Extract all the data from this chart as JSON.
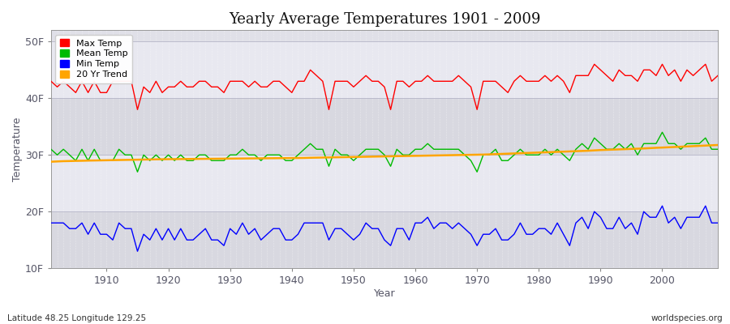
{
  "title": "Yearly Average Temperatures 1901 - 2009",
  "xlabel": "Year",
  "ylabel": "Temperature",
  "xlim": [
    1901,
    2009
  ],
  "ylim": [
    10,
    52
  ],
  "yticks": [
    10,
    20,
    30,
    40,
    50
  ],
  "ytick_labels": [
    "10F",
    "20F",
    "30F",
    "40F",
    "50F"
  ],
  "xticks": [
    1910,
    1920,
    1930,
    1940,
    1950,
    1960,
    1970,
    1980,
    1990,
    2000
  ],
  "bg_color": "#e0e0e8",
  "fig_color": "#ffffff",
  "legend_labels": [
    "Max Temp",
    "Mean Temp",
    "Min Temp",
    "20 Yr Trend"
  ],
  "legend_colors": [
    "#ff0000",
    "#00bb00",
    "#0000ff",
    "#ffa500"
  ],
  "footer_left": "Latitude 48.25 Longitude 129.25",
  "footer_right": "worldspecies.org",
  "years": [
    1901,
    1902,
    1903,
    1904,
    1905,
    1906,
    1907,
    1908,
    1909,
    1910,
    1911,
    1912,
    1913,
    1914,
    1915,
    1916,
    1917,
    1918,
    1919,
    1920,
    1921,
    1922,
    1923,
    1924,
    1925,
    1926,
    1927,
    1928,
    1929,
    1930,
    1931,
    1932,
    1933,
    1934,
    1935,
    1936,
    1937,
    1938,
    1939,
    1940,
    1941,
    1942,
    1943,
    1944,
    1945,
    1946,
    1947,
    1948,
    1949,
    1950,
    1951,
    1952,
    1953,
    1954,
    1955,
    1956,
    1957,
    1958,
    1959,
    1960,
    1961,
    1962,
    1963,
    1964,
    1965,
    1966,
    1967,
    1968,
    1969,
    1970,
    1971,
    1972,
    1973,
    1974,
    1975,
    1976,
    1977,
    1978,
    1979,
    1980,
    1981,
    1982,
    1983,
    1984,
    1985,
    1986,
    1987,
    1988,
    1989,
    1990,
    1991,
    1992,
    1993,
    1994,
    1995,
    1996,
    1997,
    1998,
    1999,
    2000,
    2001,
    2002,
    2003,
    2004,
    2005,
    2006,
    2007,
    2008,
    2009
  ],
  "max_temp": [
    43,
    42,
    43,
    42,
    41,
    43,
    41,
    43,
    41,
    41,
    43,
    43,
    43,
    43,
    38,
    42,
    41,
    43,
    41,
    42,
    42,
    43,
    42,
    42,
    43,
    43,
    42,
    42,
    41,
    43,
    43,
    43,
    42,
    43,
    42,
    42,
    43,
    43,
    42,
    41,
    43,
    43,
    45,
    44,
    43,
    38,
    43,
    43,
    43,
    42,
    43,
    44,
    43,
    43,
    42,
    38,
    43,
    43,
    42,
    43,
    43,
    44,
    43,
    43,
    43,
    43,
    44,
    43,
    42,
    38,
    43,
    43,
    43,
    42,
    41,
    43,
    44,
    43,
    43,
    43,
    44,
    43,
    44,
    43,
    41,
    44,
    44,
    44,
    46,
    45,
    44,
    43,
    45,
    44,
    44,
    43,
    45,
    45,
    44,
    46,
    44,
    45,
    43,
    45,
    44,
    45,
    46,
    43,
    44
  ],
  "mean_temp": [
    31,
    30,
    31,
    30,
    29,
    31,
    29,
    31,
    29,
    29,
    29,
    31,
    30,
    30,
    27,
    30,
    29,
    30,
    29,
    30,
    29,
    30,
    29,
    29,
    30,
    30,
    29,
    29,
    29,
    30,
    30,
    31,
    30,
    30,
    29,
    30,
    30,
    30,
    29,
    29,
    30,
    31,
    32,
    31,
    31,
    28,
    31,
    30,
    30,
    29,
    30,
    31,
    31,
    31,
    30,
    28,
    31,
    30,
    30,
    31,
    31,
    32,
    31,
    31,
    31,
    31,
    31,
    30,
    29,
    27,
    30,
    30,
    31,
    29,
    29,
    30,
    31,
    30,
    30,
    30,
    31,
    30,
    31,
    30,
    29,
    31,
    32,
    31,
    33,
    32,
    31,
    31,
    32,
    31,
    32,
    30,
    32,
    32,
    32,
    34,
    32,
    32,
    31,
    32,
    32,
    32,
    33,
    31,
    31
  ],
  "min_temp": [
    18,
    18,
    18,
    17,
    17,
    18,
    16,
    18,
    16,
    16,
    15,
    18,
    17,
    17,
    13,
    16,
    15,
    17,
    15,
    17,
    15,
    17,
    15,
    15,
    16,
    17,
    15,
    15,
    14,
    17,
    16,
    18,
    16,
    17,
    15,
    16,
    17,
    17,
    15,
    15,
    16,
    18,
    18,
    18,
    18,
    15,
    17,
    17,
    16,
    15,
    16,
    18,
    17,
    17,
    15,
    14,
    17,
    17,
    15,
    18,
    18,
    19,
    17,
    18,
    18,
    17,
    18,
    17,
    16,
    14,
    16,
    16,
    17,
    15,
    15,
    16,
    18,
    16,
    16,
    17,
    17,
    16,
    18,
    16,
    14,
    18,
    19,
    17,
    20,
    19,
    17,
    17,
    19,
    17,
    18,
    16,
    20,
    19,
    19,
    21,
    18,
    19,
    17,
    19,
    19,
    19,
    21,
    18,
    18
  ],
  "trend": [
    28.8,
    28.85,
    28.9,
    28.92,
    28.95,
    28.97,
    29.0,
    29.02,
    29.04,
    29.06,
    29.08,
    29.1,
    29.12,
    29.14,
    29.16,
    29.18,
    29.2,
    29.22,
    29.24,
    29.25,
    29.26,
    29.27,
    29.28,
    29.29,
    29.3,
    29.31,
    29.32,
    29.33,
    29.34,
    29.35,
    29.36,
    29.37,
    29.38,
    29.39,
    29.4,
    29.41,
    29.42,
    29.43,
    29.44,
    29.45,
    29.46,
    29.47,
    29.5,
    29.52,
    29.54,
    29.56,
    29.58,
    29.6,
    29.62,
    29.64,
    29.66,
    29.68,
    29.7,
    29.72,
    29.74,
    29.76,
    29.78,
    29.8,
    29.82,
    29.84,
    29.86,
    29.88,
    29.9,
    29.92,
    29.94,
    29.96,
    29.98,
    30.0,
    30.02,
    30.04,
    30.06,
    30.1,
    30.14,
    30.18,
    30.22,
    30.26,
    30.3,
    30.34,
    30.38,
    30.42,
    30.46,
    30.5,
    30.54,
    30.58,
    30.62,
    30.66,
    30.7,
    30.74,
    30.8,
    30.86,
    30.9,
    30.94,
    30.98,
    31.02,
    31.06,
    31.1,
    31.14,
    31.2,
    31.26,
    31.3,
    31.35,
    31.4,
    31.45,
    31.5,
    31.55,
    31.6,
    31.65,
    31.7,
    31.75
  ]
}
